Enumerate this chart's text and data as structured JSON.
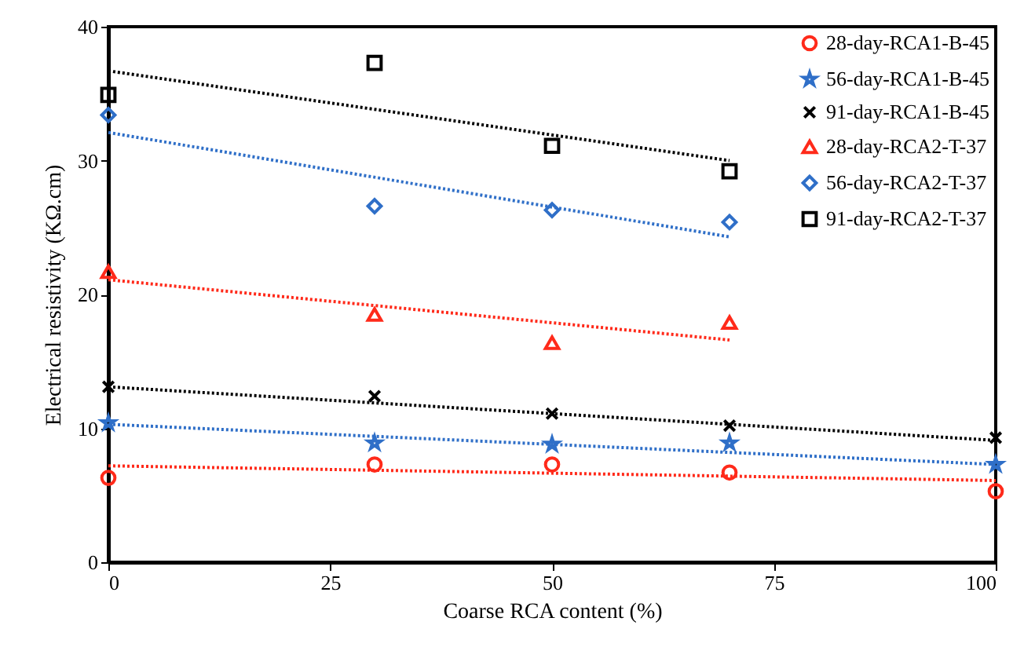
{
  "chart_data": {
    "type": "scatter",
    "xlabel": "Coarse RCA content  (%)",
    "ylabel": "Electrical  resistivity  (KΩ.cm)",
    "xlim": [
      0,
      100
    ],
    "xticks": [
      0,
      25,
      50,
      75,
      100
    ],
    "ylim": [
      0,
      40
    ],
    "yticks": [
      0,
      10,
      20,
      30,
      40
    ],
    "grid": false,
    "legend": "top right",
    "series": [
      {
        "name": "28-day-RCA1-B-45",
        "color": "#ff2a1a",
        "marker": "circle",
        "x": [
          0,
          30,
          50,
          70,
          100
        ],
        "values": [
          6.3,
          7.3,
          7.3,
          6.7,
          5.3
        ]
      },
      {
        "name": "56-day-RCA1-B-45",
        "color": "#2f6fc8",
        "marker": "star",
        "x": [
          0,
          30,
          50,
          70,
          100
        ],
        "values": [
          10.4,
          8.9,
          8.8,
          8.9,
          7.3
        ]
      },
      {
        "name": "91-day-RCA1-B-45",
        "color": "#000000",
        "marker": "cross",
        "x": [
          0,
          30,
          50,
          70,
          100
        ],
        "values": [
          13.1,
          12.4,
          11.1,
          10.2,
          9.3
        ]
      },
      {
        "name": "28-day-RCA2-T-37",
        "color": "#ff2a1a",
        "marker": "triangle",
        "x": [
          0,
          30,
          50,
          70
        ],
        "values": [
          21.7,
          18.5,
          16.4,
          17.9
        ]
      },
      {
        "name": "56-day-RCA2-T-37",
        "color": "#2f6fc8",
        "marker": "diamond",
        "x": [
          0,
          30,
          50,
          70
        ],
        "values": [
          33.4,
          26.6,
          26.3,
          25.4
        ]
      },
      {
        "name": "91-day-RCA2-T-37",
        "color": "#000000",
        "marker": "square",
        "x": [
          0,
          30,
          50,
          70
        ],
        "values": [
          34.9,
          37.3,
          31.1,
          29.2
        ]
      },
      {
        "type": "line",
        "color": "#ff2a1a",
        "line_style": "dotted",
        "x": [
          0,
          100
        ],
        "values": [
          7.2,
          6.1
        ]
      },
      {
        "type": "line",
        "color": "#2f6fc8",
        "line_style": "dotted",
        "x": [
          0,
          100
        ],
        "values": [
          10.3,
          7.3
        ]
      },
      {
        "type": "line",
        "color": "#000000",
        "line_style": "dotted",
        "x": [
          0,
          100
        ],
        "values": [
          13.1,
          9.1
        ]
      },
      {
        "type": "line",
        "color": "#ff2a1a",
        "line_style": "dotted",
        "x": [
          0,
          70
        ],
        "values": [
          21.1,
          16.6
        ]
      },
      {
        "type": "line",
        "color": "#2f6fc8",
        "line_style": "dotted",
        "x": [
          0,
          70
        ],
        "values": [
          32.1,
          24.3
        ]
      },
      {
        "type": "line",
        "color": "#000000",
        "line_style": "dotted",
        "x": [
          0,
          70
        ],
        "values": [
          36.7,
          30.0
        ]
      }
    ]
  }
}
